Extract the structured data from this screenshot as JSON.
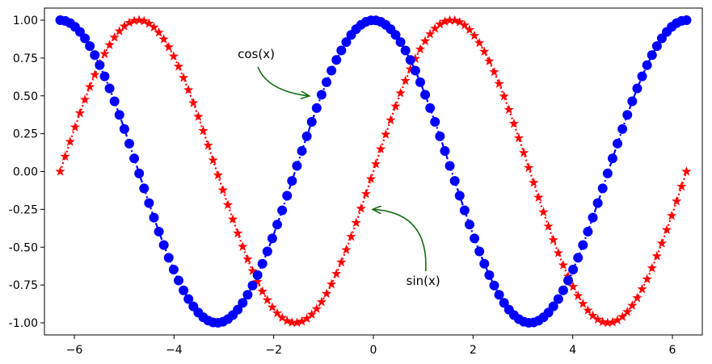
{
  "chart_data": {
    "type": "line",
    "title": "",
    "xlabel": "",
    "ylabel": "",
    "xlim": [
      -6.6,
      6.6
    ],
    "ylim": [
      -1.08,
      1.08
    ],
    "xticks": [
      -6,
      -4,
      -2,
      0,
      2,
      4,
      6
    ],
    "xtick_labels": [
      "−6",
      "−4",
      "−2",
      "0",
      "2",
      "4",
      "6"
    ],
    "yticks": [
      1.0,
      0.75,
      0.5,
      0.25,
      0.0,
      -0.25,
      -0.5,
      -0.75,
      -1.0
    ],
    "ytick_labels": [
      "1.00",
      "0.75",
      "0.50",
      "0.25",
      "0.00",
      "-0.25",
      "-0.50",
      "-0.75",
      "-1.00"
    ],
    "x_range": [
      -6.283,
      6.283
    ],
    "points_per_series": 128,
    "grid": false,
    "series": [
      {
        "name": "sin(x)",
        "function": "sin",
        "color": "#ff0000",
        "marker": "star",
        "linestyle": "dotted"
      },
      {
        "name": "cos(x)",
        "function": "cos",
        "color": "#0000ff",
        "marker": "circle",
        "linestyle": "dashdot"
      }
    ],
    "annotations": [
      {
        "text": "cos(x)",
        "text_x": -2.35,
        "text_y": 0.75,
        "point_x": -1.3,
        "point_y": 0.5,
        "arrow_color": "#1a6e1a"
      },
      {
        "text": "sin(x)",
        "text_x": 1.0,
        "text_y": -0.75,
        "point_x": 0.0,
        "point_y": -0.25,
        "arrow_color": "#1a6e1a"
      }
    ]
  }
}
